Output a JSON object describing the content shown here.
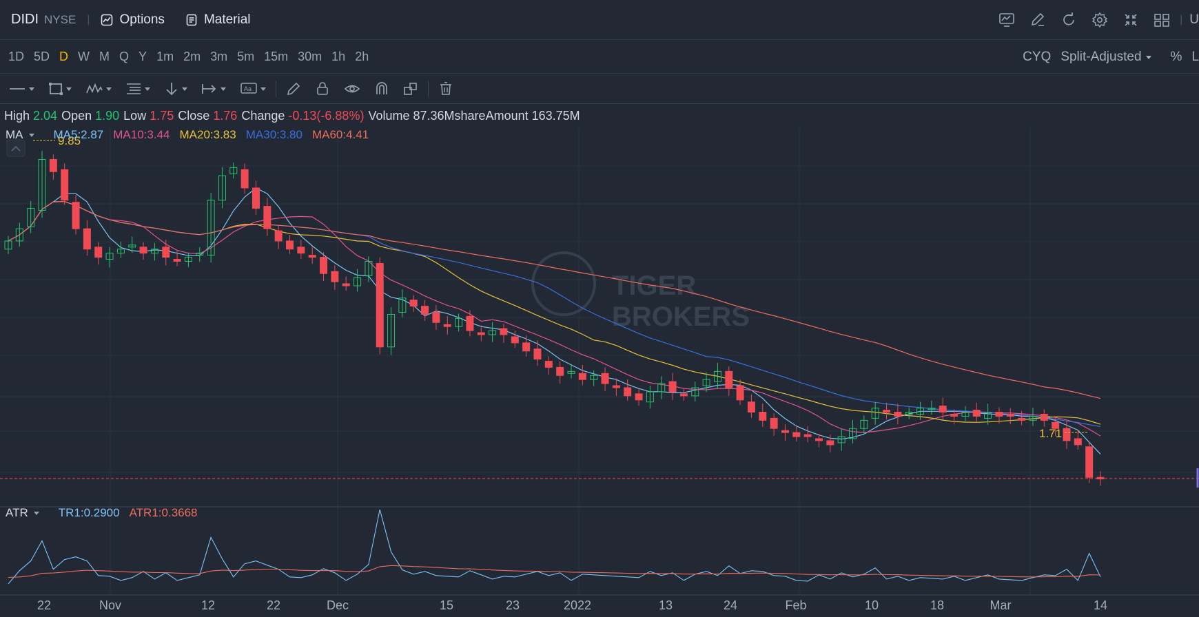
{
  "header": {
    "symbol": "DIDI",
    "exchange": "NYSE",
    "separator": "|",
    "options_label": "Options",
    "material_label": "Material",
    "right_cutoff": "U"
  },
  "periods": {
    "items": [
      "1D",
      "5D",
      "D",
      "W",
      "M",
      "Q",
      "Y",
      "1m",
      "2m",
      "3m",
      "5m",
      "15m",
      "30m",
      "1h",
      "2h"
    ],
    "selected": "D",
    "cyq_label": "CYQ",
    "adjust_label": "Split-Adjusted",
    "percent_label": "%",
    "right_cutoff": "L"
  },
  "quote": {
    "high_label": "High",
    "high": "2.04",
    "open_label": "Open",
    "open": "1.90",
    "low_label": "Low",
    "low": "1.75",
    "close_label": "Close",
    "close": "1.76",
    "change_label": "Change",
    "change": "-0.13(-6.88%)",
    "volume_label": "Volume",
    "volume": "87.36Mshare",
    "amount_label": "Amount",
    "amount": "163.75M"
  },
  "ma_legend": {
    "name": "MA",
    "ma5": "MA5:2.87",
    "ma10": "MA10:3.44",
    "ma20": "MA20:3.83",
    "ma30": "MA30:3.80",
    "ma60": "MA60:4.41"
  },
  "atr_legend": {
    "name": "ATR",
    "tr1": "TR1:0.2900",
    "atr1": "ATR1:0.3668"
  },
  "markers": {
    "high_price": "9.85",
    "low_price": "1.71"
  },
  "watermark": {
    "line1": "TIGER",
    "line2": "BROKERS"
  },
  "x_axis_labels": [
    "22",
    "Nov",
    "12",
    "22",
    "Dec",
    "15",
    "23",
    "2022",
    "13",
    "24",
    "Feb",
    "10",
    "18",
    "Mar",
    "14"
  ],
  "colors": {
    "up": "#26c46b",
    "down": "#f04b55",
    "ma5": "#7fc4f5",
    "ma10": "#e4548e",
    "ma20": "#e8c23a",
    "ma30": "#3a6fe0",
    "ma60": "#ef6d5e",
    "tr1": "#7fc4f5",
    "atr1": "#ef6d5e",
    "selected_period": "#f2b600"
  },
  "chart_data": {
    "type": "candlestick",
    "last_close_marker": 1.71,
    "period_high_marker": 9.85,
    "x_tick_labels": [
      "22",
      "Nov",
      "12",
      "22",
      "Dec",
      "15",
      "23",
      "2022",
      "13",
      "24",
      "Feb",
      "10",
      "18",
      "Mar",
      "14"
    ],
    "price_path": [
      7.6,
      7.9,
      8.4,
      9.6,
      9.3,
      8.6,
      7.9,
      7.4,
      7.2,
      7.3,
      7.4,
      7.5,
      7.3,
      7.4,
      7.2,
      7.1,
      7.2,
      7.3,
      8.6,
      9.2,
      9.4,
      8.9,
      8.4,
      7.9,
      7.6,
      7.4,
      7.3,
      7.2,
      6.8,
      6.6,
      6.5,
      6.7,
      7.1,
      5.0,
      5.8,
      6.2,
      6.0,
      5.8,
      5.6,
      5.5,
      5.7,
      5.4,
      5.3,
      5.4,
      5.3,
      5.1,
      4.9,
      4.7,
      4.5,
      4.3,
      4.4,
      4.2,
      4.3,
      4.1,
      4.0,
      3.8,
      3.7,
      3.9,
      4.1,
      3.9,
      3.8,
      4.0,
      4.2,
      4.4,
      4.0,
      3.7,
      3.4,
      3.2,
      3.0,
      2.9,
      2.8,
      2.8,
      2.7,
      2.6,
      2.8,
      3.0,
      3.2,
      3.5,
      3.4,
      3.3,
      3.4,
      3.5,
      3.5,
      3.4,
      3.3,
      3.4,
      3.3,
      3.4,
      3.3,
      3.3,
      3.2,
      3.3,
      3.2,
      3.0,
      2.7,
      2.6,
      1.8,
      1.76
    ],
    "ma5_last": 2.87,
    "ma10_last": 3.44,
    "ma20_last": 3.83,
    "ma30_last": 3.8,
    "ma60_last": 4.41,
    "tr1_last": 0.29,
    "atr1_last": 0.3668
  }
}
